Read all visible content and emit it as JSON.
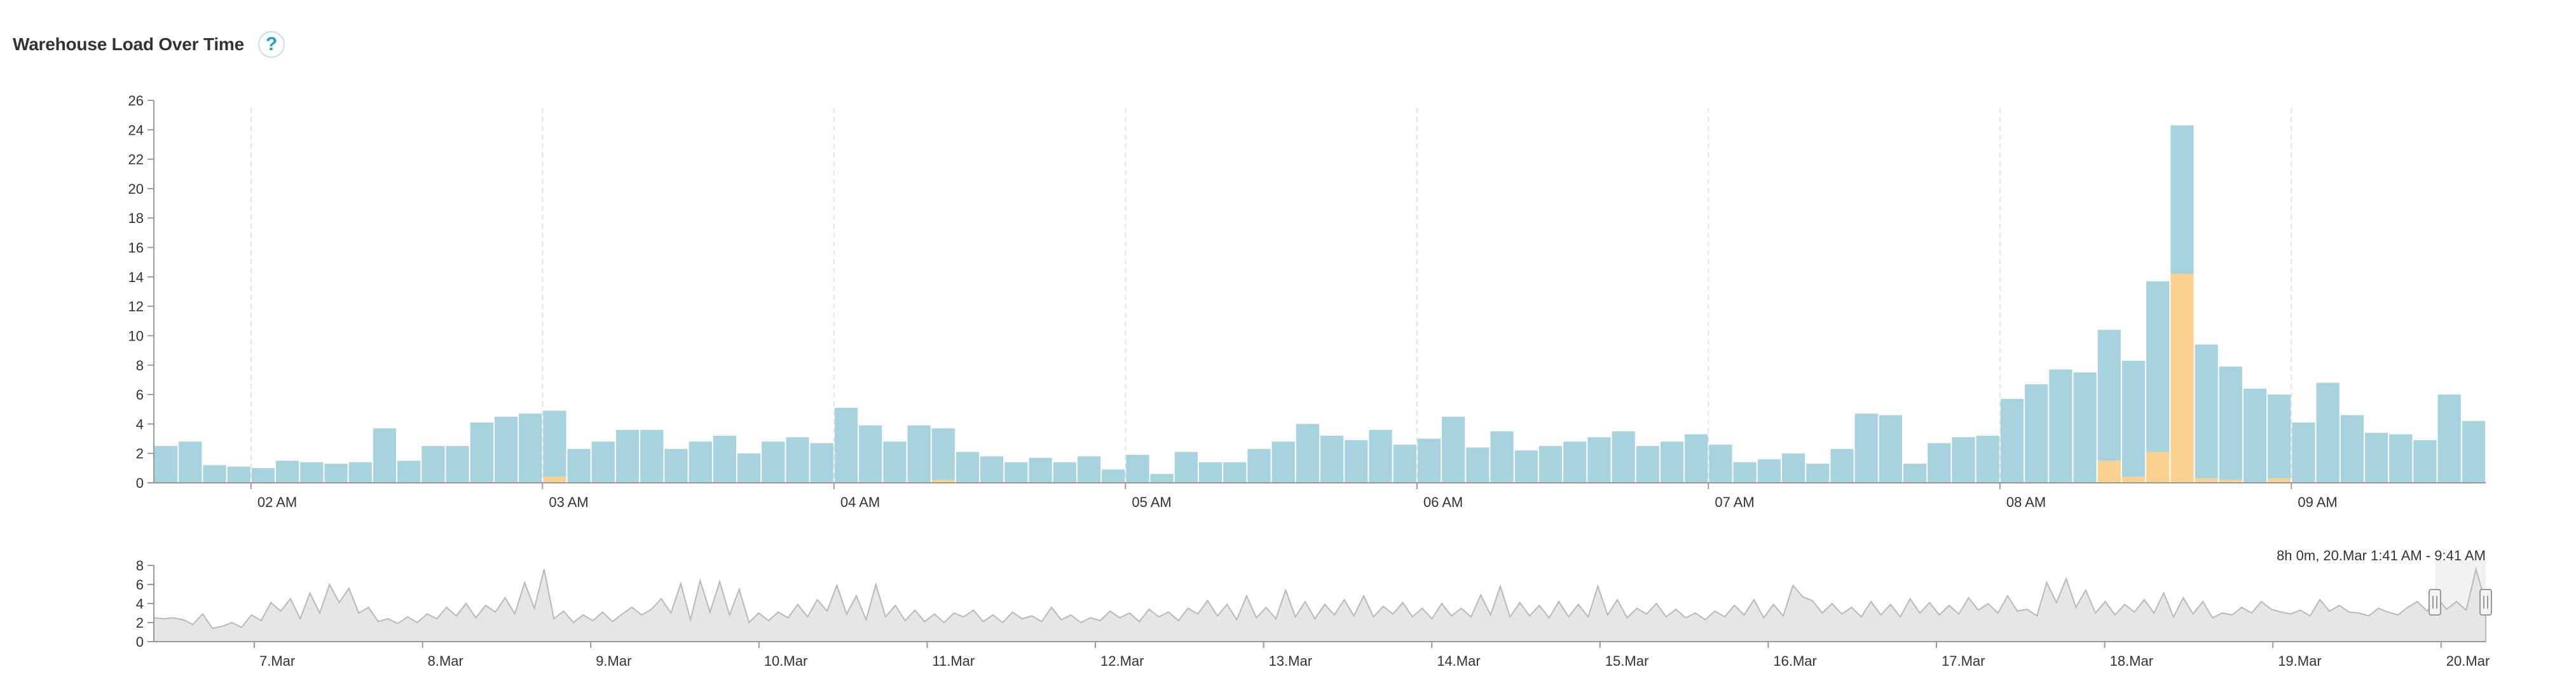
{
  "header": {
    "title": "Warehouse Load Over Time",
    "help_label": "?"
  },
  "colors": {
    "running": "#a6d3de",
    "queued": "#fbd18f",
    "navigator_fill": "#e6e6e6",
    "navigator_line": "#b8b8b8",
    "grid_dashed": "#e2e2e2"
  },
  "chart_data": [
    {
      "type": "bar",
      "stacked": true,
      "title": "",
      "xlabel": "",
      "ylabel": "",
      "ylim": [
        0,
        26
      ],
      "y_ticks": [
        0,
        2,
        4,
        6,
        8,
        10,
        12,
        14,
        16,
        18,
        20,
        22,
        24,
        26
      ],
      "x_range": [
        "01:40",
        "09:40"
      ],
      "bin_minutes": 5,
      "x_tick_labels": [
        {
          "time": "02:00",
          "label": "02 AM"
        },
        {
          "time": "03:00",
          "label": "03 AM"
        },
        {
          "time": "04:00",
          "label": "04 AM"
        },
        {
          "time": "05:00",
          "label": "05 AM"
        },
        {
          "time": "06:00",
          "label": "06 AM"
        },
        {
          "time": "07:00",
          "label": "07 AM"
        },
        {
          "time": "08:00",
          "label": "08 AM"
        },
        {
          "time": "09:00",
          "label": "09 AM"
        }
      ],
      "grid": "vertical dashed at hours",
      "series": [
        {
          "values": [
            2.5,
            2.8,
            1.2,
            1.1,
            1.0,
            1.5,
            1.4,
            1.3,
            1.4,
            3.7,
            1.5,
            2.5,
            2.5,
            4.1,
            4.5,
            4.7,
            4.5,
            2.3,
            2.8,
            3.6,
            3.6,
            2.3,
            2.8,
            3.2,
            2.0,
            2.8,
            3.1,
            2.7,
            5.1,
            3.9,
            2.8,
            3.9,
            3.5,
            2.1,
            1.8,
            1.4,
            1.7,
            1.4,
            1.8,
            0.9,
            1.9,
            0.6,
            2.1,
            1.4,
            1.4,
            2.3,
            2.8,
            4.0,
            3.2,
            2.9,
            3.6,
            2.6,
            3.0,
            4.5,
            2.4,
            3.5,
            2.2,
            2.5,
            2.8,
            3.1,
            3.5,
            2.5,
            2.8,
            3.3,
            2.6,
            1.4,
            1.6,
            2.0,
            1.3,
            2.3,
            4.7,
            4.6,
            1.3,
            2.7,
            3.1,
            3.2,
            5.7,
            6.7,
            7.7,
            7.5,
            8.9,
            7.9,
            11.6,
            10.1,
            9.1,
            7.7,
            6.4,
            5.7,
            4.1,
            6.8,
            4.6,
            3.4,
            3.3,
            2.9,
            6.0,
            4.2
          ]
        },
        {
          "values": [
            0,
            0,
            0,
            0,
            0,
            0,
            0,
            0,
            0,
            0,
            0,
            0,
            0,
            0,
            0,
            0,
            0.4,
            0,
            0,
            0,
            0,
            0,
            0,
            0,
            0,
            0,
            0,
            0,
            0,
            0,
            0,
            0,
            0.2,
            0,
            0,
            0,
            0,
            0,
            0,
            0,
            0,
            0,
            0,
            0,
            0,
            0,
            0,
            0,
            0,
            0,
            0,
            0,
            0,
            0,
            0,
            0,
            0,
            0,
            0,
            0,
            0,
            0,
            0,
            0,
            0,
            0,
            0,
            0,
            0,
            0,
            0,
            0,
            0,
            0,
            0,
            0,
            0,
            0,
            0,
            0,
            1.5,
            0.4,
            2.1,
            14.2,
            0.3,
            0.2,
            0,
            0.3,
            0,
            0,
            0,
            0,
            0,
            0,
            0,
            0
          ]
        }
      ]
    },
    {
      "type": "area",
      "title": "",
      "ylim": [
        0,
        8
      ],
      "y_ticks": [
        0,
        2,
        4,
        6,
        8
      ],
      "x_range": [
        "6.Mar",
        "20.Mar"
      ],
      "x_tick_labels": [
        "7.Mar",
        "8.Mar",
        "9.Mar",
        "10.Mar",
        "11.Mar",
        "12.Mar",
        "13.Mar",
        "14.Mar",
        "15.Mar",
        "16.Mar",
        "17.Mar",
        "18.Mar",
        "19.Mar",
        "20.Mar"
      ],
      "range_label": "8h 0m, 20.Mar 1:41 AM - 9:41 AM",
      "selected_range": [
        "20.Mar 01:41",
        "20.Mar 09:41"
      ],
      "values": [
        2.5,
        2.4,
        2.5,
        2.3,
        1.8,
        2.9,
        1.4,
        1.6,
        2.0,
        1.5,
        2.8,
        2.2,
        4.1,
        3.2,
        4.5,
        2.4,
        5.1,
        3.0,
        6.0,
        4.1,
        5.6,
        3.0,
        3.6,
        2.1,
        2.4,
        1.9,
        2.6,
        2.0,
        2.9,
        2.4,
        3.6,
        2.7,
        4.0,
        2.5,
        3.8,
        3.1,
        4.6,
        2.9,
        6.2,
        3.5,
        7.6,
        2.4,
        3.2,
        2.0,
        2.8,
        2.2,
        3.1,
        2.1,
        2.9,
        3.6,
        2.8,
        3.4,
        4.5,
        3.0,
        6.1,
        2.3,
        6.4,
        3.1,
        6.3,
        2.8,
        5.5,
        2.0,
        3.0,
        2.2,
        3.1,
        2.5,
        3.9,
        2.6,
        4.4,
        3.2,
        5.9,
        2.9,
        4.8,
        2.3,
        6.0,
        2.6,
        3.8,
        2.2,
        3.3,
        2.1,
        2.9,
        2.0,
        3.0,
        2.6,
        3.3,
        2.1,
        2.8,
        2.0,
        3.1,
        2.4,
        2.7,
        2.1,
        3.6,
        2.3,
        2.8,
        2.0,
        2.5,
        2.2,
        3.2,
        2.5,
        3.0,
        2.1,
        3.4,
        2.6,
        3.1,
        2.2,
        3.5,
        2.9,
        4.3,
        2.7,
        3.9,
        2.3,
        4.8,
        2.5,
        3.6,
        2.4,
        5.4,
        2.6,
        4.2,
        2.4,
        3.9,
        2.8,
        4.4,
        2.7,
        4.8,
        2.6,
        3.7,
        2.9,
        4.1,
        2.6,
        3.5,
        2.4,
        4.0,
        2.7,
        3.5,
        2.6,
        4.9,
        2.8,
        5.8,
        2.6,
        4.1,
        2.7,
        3.8,
        2.5,
        4.2,
        2.6,
        3.9,
        2.6,
        5.8,
        2.8,
        4.4,
        2.5,
        3.5,
        2.9,
        4.0,
        2.6,
        3.4,
        2.5,
        3.0,
        2.3,
        3.2,
        2.6,
        3.8,
        2.8,
        4.4,
        2.5,
        3.9,
        2.7,
        5.9,
        4.7,
        4.3,
        3.0,
        4.0,
        2.9,
        3.6,
        2.6,
        4.2,
        2.8,
        3.9,
        2.6,
        4.5,
        3.0,
        4.1,
        2.8,
        3.8,
        2.9,
        4.6,
        3.3,
        4.0,
        3.0,
        4.8,
        3.2,
        3.4,
        2.7,
        6.2,
        4.1,
        6.6,
        3.6,
        5.4,
        3.0,
        4.2,
        2.8,
        3.9,
        3.1,
        4.4,
        3.0,
        5.1,
        2.6,
        4.6,
        2.9,
        4.2,
        2.5,
        3.0,
        2.8,
        3.6,
        3.0,
        4.2,
        3.4,
        3.1,
        2.9,
        3.3,
        2.7,
        4.4,
        3.2,
        3.8,
        3.1,
        3.0,
        2.7,
        3.5,
        3.1,
        2.8,
        3.6,
        4.2,
        3.2,
        4.6,
        3.4,
        4.2,
        3.3,
        7.6,
        4.0
      ]
    }
  ]
}
